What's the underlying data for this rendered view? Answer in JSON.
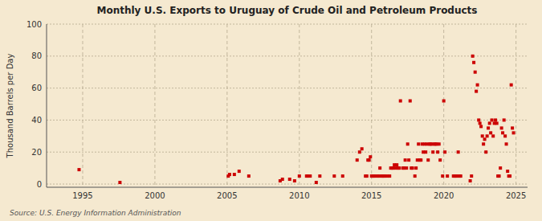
{
  "chart_data": {
    "type": "scatter",
    "title": "Monthly U.S. Exports to Uruguay of Crude Oil and Petroleum Products",
    "ylabel": "Thousand Barrels per Day",
    "source": "Source: U.S. Energy Information Administration",
    "color": "#cc0000",
    "marker": "square",
    "grid": true,
    "xlim": [
      1992.5,
      2025.8
    ],
    "ylim": [
      -2,
      100
    ],
    "xticks": [
      1995,
      2000,
      2005,
      2010,
      2015,
      2020,
      2025
    ],
    "yticks": [
      0,
      20,
      40,
      60,
      80,
      100
    ],
    "x": [
      1994.75,
      1997.58,
      2005.08,
      2005.17,
      2005.5,
      2005.83,
      2006.5,
      2008.67,
      2008.83,
      2009.33,
      2009.67,
      2010.0,
      2010.5,
      2010.58,
      2010.75,
      2011.17,
      2011.42,
      2012.42,
      2013.0,
      2014.0,
      2014.17,
      2014.33,
      2014.58,
      2014.67,
      2014.75,
      2014.83,
      2014.92,
      2015.0,
      2015.08,
      2015.17,
      2015.25,
      2015.42,
      2015.5,
      2015.58,
      2015.67,
      2015.75,
      2015.83,
      2015.92,
      2016.08,
      2016.25,
      2016.33,
      2016.42,
      2016.5,
      2016.58,
      2016.67,
      2016.75,
      2016.83,
      2016.92,
      2017.0,
      2017.17,
      2017.25,
      2017.33,
      2017.42,
      2017.5,
      2017.58,
      2017.67,
      2017.75,
      2017.83,
      2018.0,
      2018.08,
      2018.17,
      2018.25,
      2018.33,
      2018.42,
      2018.5,
      2018.58,
      2018.67,
      2018.75,
      2018.83,
      2018.92,
      2019.0,
      2019.08,
      2019.17,
      2019.25,
      2019.33,
      2019.42,
      2019.5,
      2019.58,
      2019.67,
      2019.75,
      2019.92,
      2020.0,
      2020.08,
      2020.25,
      2020.67,
      2020.75,
      2020.83,
      2020.92,
      2021.0,
      2021.08,
      2021.17,
      2021.83,
      2021.92,
      2022.0,
      2022.08,
      2022.17,
      2022.25,
      2022.33,
      2022.42,
      2022.5,
      2022.58,
      2022.67,
      2022.75,
      2022.83,
      2022.92,
      2023.0,
      2023.08,
      2023.17,
      2023.25,
      2023.33,
      2023.42,
      2023.5,
      2023.58,
      2023.67,
      2023.75,
      2023.83,
      2023.92,
      2024.0,
      2024.08,
      2024.17,
      2024.25,
      2024.33,
      2024.42,
      2024.5,
      2024.58,
      2024.67,
      2024.75,
      2024.83
    ],
    "values": [
      9,
      1,
      5,
      6,
      6,
      8,
      5,
      2,
      3,
      3,
      2,
      5,
      5,
      5,
      5,
      1,
      5,
      5,
      5,
      15,
      20,
      22,
      5,
      5,
      15,
      15,
      17,
      5,
      5,
      5,
      5,
      5,
      5,
      10,
      5,
      5,
      5,
      5,
      5,
      5,
      10,
      10,
      10,
      12,
      10,
      12,
      10,
      10,
      52,
      10,
      10,
      15,
      10,
      25,
      15,
      52,
      10,
      10,
      5,
      10,
      15,
      25,
      15,
      15,
      25,
      20,
      25,
      20,
      25,
      15,
      25,
      25,
      25,
      20,
      25,
      25,
      25,
      20,
      25,
      15,
      5,
      52,
      20,
      5,
      5,
      5,
      5,
      5,
      20,
      5,
      5,
      2,
      5,
      80,
      76,
      70,
      58,
      62,
      40,
      38,
      36,
      30,
      25,
      28,
      20,
      30,
      35,
      38,
      32,
      40,
      30,
      38,
      40,
      38,
      5,
      5,
      10,
      35,
      32,
      40,
      30,
      25,
      8,
      5,
      5,
      62,
      35,
      32
    ]
  }
}
